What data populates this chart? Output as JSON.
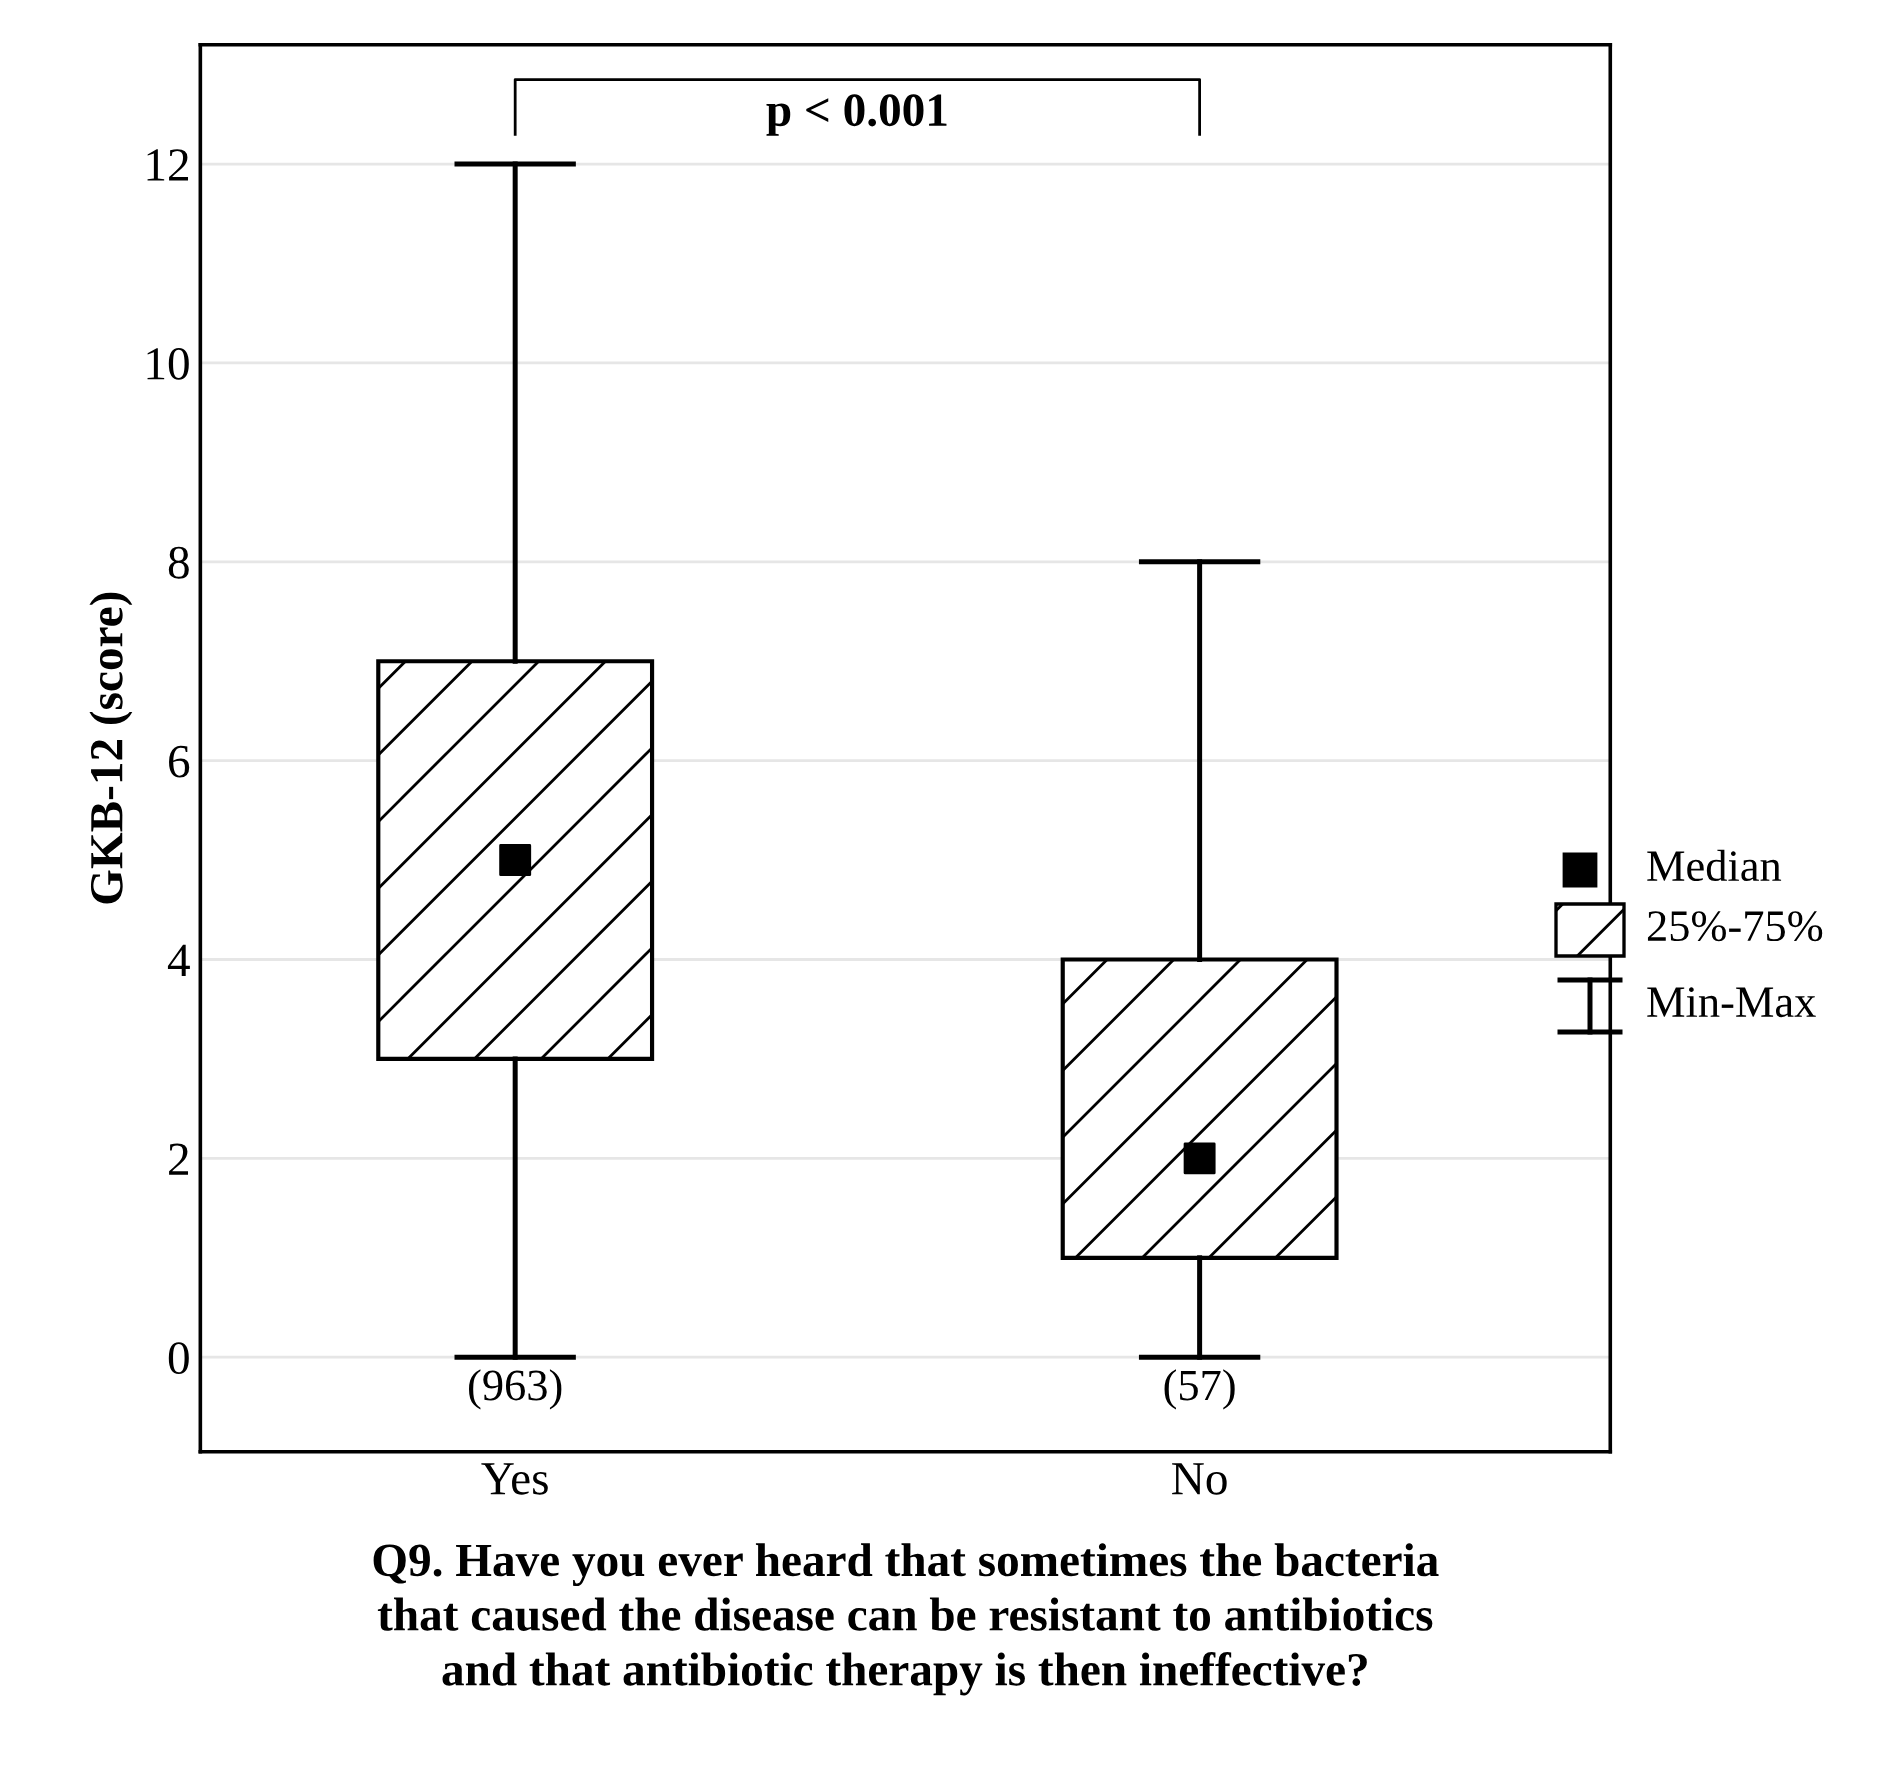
{
  "chart_data": {
    "type": "box",
    "categories": [
      "Yes",
      "No"
    ],
    "boxes": [
      {
        "low": 0,
        "q1": 3,
        "median": 5,
        "q3": 7,
        "high": 12
      },
      {
        "low": 0,
        "q1": 1,
        "median": 2,
        "q3": 4,
        "high": 8
      }
    ],
    "xlabel": "Q9. Have you ever heard that sometimes the bacteria\nthat caused the disease can be resistant to antibiotics\nand that antibiotic therapy is then ineffective?",
    "ylabel": "GKB-12 (score)",
    "ylim": [
      -0.95,
      13.2
    ],
    "yticks": [
      0,
      2,
      4,
      6,
      8,
      10,
      12
    ],
    "grid": "y",
    "color": "#000000",
    "annotations": [
      "p < 0.001",
      "(963)",
      "(57)",
      "Median",
      "25%-75%",
      "Min-Max"
    ]
  }
}
